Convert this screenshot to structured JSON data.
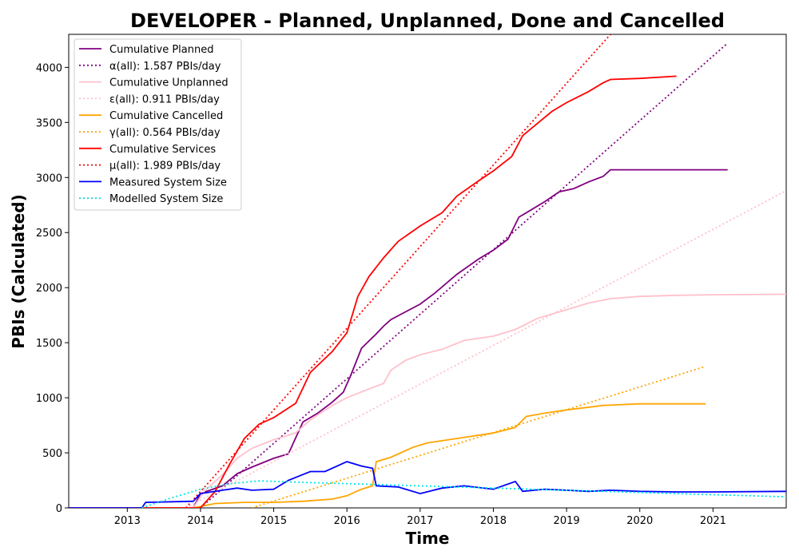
{
  "chart_data": {
    "type": "line",
    "title": "DEVELOPER - Planned, Unplanned, Done  and Cancelled",
    "xlabel": "Time",
    "ylabel": "PBIs (Calculated)",
    "xlim": [
      2012.2,
      2022.0
    ],
    "ylim": [
      0,
      4300
    ],
    "x_ticks": [
      2013,
      2014,
      2015,
      2016,
      2017,
      2018,
      2019,
      2020,
      2021
    ],
    "y_ticks": [
      0,
      500,
      1000,
      1500,
      2000,
      2500,
      3000,
      3500,
      4000
    ],
    "grid": false,
    "legend_position": "upper-left",
    "series": [
      {
        "name": "Cumulative Planned",
        "color": "#800080",
        "style": "solid",
        "x": [
          2012.2,
          2013.9,
          2014.0,
          2014.3,
          2014.5,
          2014.7,
          2015.0,
          2015.2,
          2015.4,
          2015.6,
          2015.8,
          2015.95,
          2016.05,
          2016.2,
          2016.4,
          2016.5,
          2016.6,
          2016.8,
          2017.0,
          2017.2,
          2017.5,
          2017.8,
          2018.0,
          2018.2,
          2018.35,
          2018.5,
          2018.7,
          2018.9,
          2019.1,
          2019.3,
          2019.5,
          2019.6,
          2020.0,
          2020.5,
          2021.0,
          2021.2
        ],
        "y": [
          0,
          0,
          130,
          200,
          310,
          370,
          450,
          490,
          780,
          860,
          960,
          1050,
          1200,
          1450,
          1580,
          1650,
          1710,
          1780,
          1850,
          1950,
          2120,
          2260,
          2340,
          2440,
          2640,
          2700,
          2780,
          2870,
          2900,
          2960,
          3010,
          3070,
          3070,
          3070,
          3070,
          3070
        ]
      },
      {
        "name": "α(all): 1.587 PBIs/day",
        "color": "#800080",
        "style": "dotted",
        "x": [
          2014.0,
          2021.2
        ],
        "y": [
          0,
          4220
        ]
      },
      {
        "name": "Cumulative Unplanned",
        "color": "#ffc0cb",
        "style": "solid",
        "x": [
          2012.2,
          2013.9,
          2014.05,
          2014.3,
          2014.5,
          2014.7,
          2015.0,
          2015.3,
          2015.5,
          2015.8,
          2016.0,
          2016.3,
          2016.5,
          2016.6,
          2016.8,
          2017.0,
          2017.3,
          2017.6,
          2018.0,
          2018.3,
          2018.6,
          2019.0,
          2019.3,
          2019.6,
          2020.0,
          2020.5,
          2021.0,
          2022.0
        ],
        "y": [
          0,
          0,
          150,
          300,
          450,
          540,
          620,
          680,
          800,
          930,
          1000,
          1080,
          1130,
          1250,
          1340,
          1390,
          1440,
          1520,
          1560,
          1620,
          1720,
          1800,
          1860,
          1900,
          1920,
          1930,
          1935,
          1940
        ]
      },
      {
        "name": "ε(all): 0.911 PBIs/day",
        "color": "#ffc0cb",
        "style": "dotted",
        "x": [
          2013.8,
          2022.0
        ],
        "y": [
          0,
          2880
        ]
      },
      {
        "name": "Cumulative Cancelled",
        "color": "#ffa500",
        "style": "solid",
        "x": [
          2012.2,
          2013.9,
          2014.2,
          2014.6,
          2015.0,
          2015.4,
          2015.8,
          2016.0,
          2016.2,
          2016.35,
          2016.4,
          2016.6,
          2016.9,
          2017.1,
          2017.5,
          2018.0,
          2018.3,
          2018.45,
          2018.7,
          2019.0,
          2019.5,
          2020.0,
          2020.9
        ],
        "y": [
          0,
          0,
          40,
          50,
          50,
          60,
          80,
          110,
          170,
          200,
          420,
          460,
          550,
          590,
          630,
          680,
          730,
          830,
          860,
          890,
          930,
          945,
          945
        ]
      },
      {
        "name": "γ(all): 0.564 PBIs/day",
        "color": "#ffa500",
        "style": "dotted",
        "x": [
          2014.7,
          2020.9
        ],
        "y": [
          0,
          1285
        ]
      },
      {
        "name": "Cumulative Services",
        "color": "#ff0000",
        "style": "solid",
        "x": [
          2012.2,
          2014.0,
          2014.2,
          2014.4,
          2014.6,
          2014.8,
          2015.0,
          2015.3,
          2015.5,
          2015.8,
          2016.0,
          2016.15,
          2016.3,
          2016.5,
          2016.7,
          2017.0,
          2017.3,
          2017.5,
          2017.8,
          2018.0,
          2018.25,
          2018.4,
          2018.6,
          2018.8,
          2019.0,
          2019.3,
          2019.5,
          2019.6,
          2020.0,
          2020.5
        ],
        "y": [
          0,
          0,
          150,
          400,
          630,
          760,
          820,
          950,
          1230,
          1420,
          1590,
          1920,
          2100,
          2270,
          2420,
          2560,
          2680,
          2830,
          2970,
          3060,
          3190,
          3380,
          3490,
          3600,
          3680,
          3780,
          3860,
          3890,
          3900,
          3920
        ]
      },
      {
        "name": "μ(all): 1.989 PBIs/day",
        "color": "#ff0000",
        "style": "dotted",
        "x": [
          2013.8,
          2019.6
        ],
        "y": [
          0,
          4300
        ]
      },
      {
        "name": "Measured System Size",
        "color": "#0000ff",
        "style": "solid",
        "x": [
          2012.2,
          2013.2,
          2013.25,
          2013.9,
          2014.0,
          2014.3,
          2014.5,
          2014.7,
          2015.0,
          2015.2,
          2015.5,
          2015.7,
          2016.0,
          2016.2,
          2016.35,
          2016.4,
          2016.7,
          2017.0,
          2017.3,
          2017.6,
          2018.0,
          2018.3,
          2018.4,
          2018.7,
          2019.0,
          2019.3,
          2019.6,
          2020.0,
          2020.5,
          2021.0,
          2022.0
        ],
        "y": [
          0,
          0,
          50,
          60,
          130,
          160,
          180,
          160,
          170,
          250,
          330,
          330,
          420,
          380,
          360,
          200,
          190,
          130,
          180,
          200,
          170,
          240,
          150,
          170,
          160,
          150,
          160,
          150,
          145,
          145,
          150
        ]
      },
      {
        "name": "Modelled System Size",
        "color": "#00e5e5",
        "style": "dotted",
        "x": [
          2013.2,
          2013.6,
          2014.0,
          2014.4,
          2014.8,
          2015.5,
          2016.5,
          2017.5,
          2018.5,
          2019.5,
          2020.5,
          2021.5,
          2022.0
        ],
        "y": [
          0,
          90,
          170,
          220,
          245,
          230,
          210,
          190,
          170,
          150,
          130,
          110,
          100
        ]
      }
    ]
  }
}
